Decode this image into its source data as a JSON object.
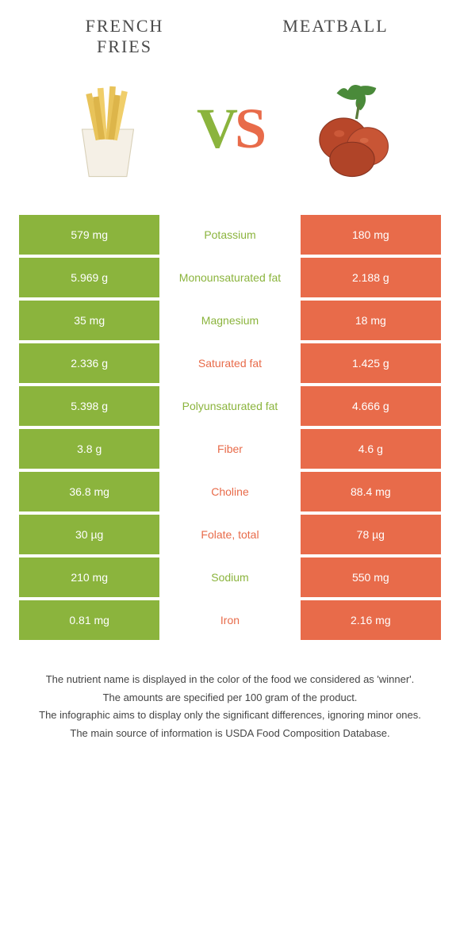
{
  "colors": {
    "left": "#8bb43d",
    "right": "#e86b4a",
    "title": "#4a4a4a",
    "white": "#ffffff"
  },
  "header": {
    "left_title": "French\nFries",
    "right_title": "Meatball",
    "vs_v": "V",
    "vs_s": "S"
  },
  "rows": [
    {
      "left": "579 mg",
      "label": "Potassium",
      "right": "180 mg",
      "winner": "left"
    },
    {
      "left": "5.969 g",
      "label": "Monounsaturated fat",
      "right": "2.188 g",
      "winner": "left"
    },
    {
      "left": "35 mg",
      "label": "Magnesium",
      "right": "18 mg",
      "winner": "left"
    },
    {
      "left": "2.336 g",
      "label": "Saturated fat",
      "right": "1.425 g",
      "winner": "right"
    },
    {
      "left": "5.398 g",
      "label": "Polyunsaturated fat",
      "right": "4.666 g",
      "winner": "left"
    },
    {
      "left": "3.8 g",
      "label": "Fiber",
      "right": "4.6 g",
      "winner": "right"
    },
    {
      "left": "36.8 mg",
      "label": "Choline",
      "right": "88.4 mg",
      "winner": "right"
    },
    {
      "left": "30 µg",
      "label": "Folate, total",
      "right": "78 µg",
      "winner": "right"
    },
    {
      "left": "210 mg",
      "label": "Sodium",
      "right": "550 mg",
      "winner": "left"
    },
    {
      "left": "0.81 mg",
      "label": "Iron",
      "right": "2.16 mg",
      "winner": "right"
    }
  ],
  "footer": {
    "line1": "The nutrient name is displayed in the color of the food we considered as 'winner'.",
    "line2": "The amounts are specified per 100 gram of the product.",
    "line3": "The infographic aims to display only the significant differences, ignoring minor ones.",
    "line4": "The main source of information is USDA Food Composition Database."
  }
}
